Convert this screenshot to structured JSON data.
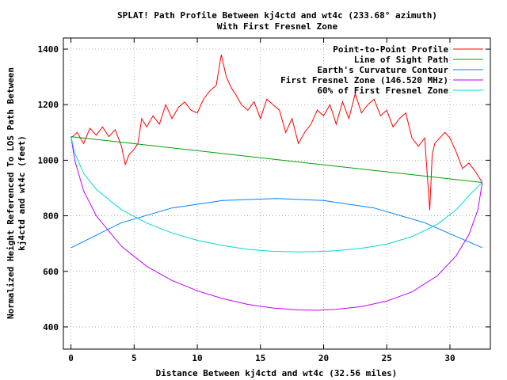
{
  "chart_data": {
    "type": "line",
    "title": "SPLAT! Path Profile Between kj4ctd and wt4c (233.68° azimuth)",
    "subtitle": "With First Fresnel Zone",
    "xlabel": "Distance Between kj4ctd and wt4c (32.56 miles)",
    "ylabel_line1": "Normalized Height Referenced To LOS Path Between",
    "ylabel_line2": "kj4ctd and wt4c (feet)",
    "xlim": [
      -0.6,
      33.2
    ],
    "ylim": [
      320,
      1440
    ],
    "xticks": [
      0,
      5,
      10,
      15,
      20,
      25,
      30
    ],
    "yticks": [
      400,
      600,
      800,
      1000,
      1200,
      1400
    ],
    "grid": true,
    "legend_position": "top-right",
    "series": [
      {
        "name": "Point-to-Point Profile",
        "color": "#ff0000",
        "x": [
          0,
          0.5,
          1,
          1.5,
          2,
          2.5,
          3,
          3.5,
          4,
          4.3,
          4.6,
          5,
          5.3,
          5.6,
          6,
          6.5,
          7,
          7.5,
          8,
          8.5,
          9,
          9.5,
          10,
          10.5,
          11,
          11.5,
          11.9,
          12.3,
          12.7,
          13,
          13.5,
          14,
          14.5,
          15,
          15.5,
          16,
          16.5,
          17,
          17.5,
          18,
          18.5,
          19,
          19.5,
          20,
          20.5,
          21,
          21.5,
          22,
          22.5,
          23,
          23.5,
          24,
          24.5,
          25,
          25.5,
          26,
          26.5,
          27,
          27.5,
          28,
          28.2,
          28.4,
          28.6,
          28.8,
          29.2,
          29.6,
          30,
          30.5,
          31,
          31.5,
          32,
          32.56
        ],
        "y": [
          1080,
          1100,
          1060,
          1115,
          1090,
          1120,
          1085,
          1110,
          1050,
          985,
          1020,
          1040,
          1060,
          1150,
          1120,
          1160,
          1130,
          1200,
          1150,
          1190,
          1210,
          1180,
          1170,
          1220,
          1250,
          1270,
          1380,
          1300,
          1260,
          1240,
          1200,
          1180,
          1210,
          1150,
          1220,
          1200,
          1180,
          1100,
          1150,
          1060,
          1100,
          1130,
          1180,
          1160,
          1200,
          1130,
          1210,
          1150,
          1240,
          1170,
          1200,
          1220,
          1160,
          1180,
          1120,
          1150,
          1170,
          1080,
          1050,
          1080,
          950,
          820,
          1020,
          1060,
          1080,
          1100,
          1080,
          1030,
          970,
          990,
          960,
          920
        ]
      },
      {
        "name": "Line of Sight Path",
        "color": "#00a000",
        "x": [
          0,
          32.56
        ],
        "y": [
          1085,
          920
        ]
      },
      {
        "name": "Earth's Curvature Contour",
        "color": "#0080ff",
        "x": [
          0,
          4,
          8,
          12,
          16.28,
          20,
          24,
          28,
          32.56
        ],
        "y": [
          685,
          775,
          828,
          855,
          862,
          855,
          828,
          775,
          685
        ]
      },
      {
        "name": "First Fresnel Zone (146.520 MHz)",
        "color": "#c000ff",
        "x": [
          0,
          0.3,
          1,
          2,
          4,
          6,
          8,
          10,
          12,
          14,
          16,
          18,
          19.5,
          21,
          23,
          25,
          27,
          29,
          30.5,
          31.5,
          32.2,
          32.56
        ],
        "y": [
          1085,
          1000,
          890,
          800,
          690,
          618,
          567,
          530,
          502,
          481,
          468,
          461,
          460,
          463,
          473,
          493,
          526,
          584,
          656,
          732,
          820,
          920
        ]
      },
      {
        "name": "60% of First Fresnel Zone",
        "color": "#00d8d8",
        "x": [
          0,
          0.3,
          1,
          2,
          4,
          6,
          8,
          10,
          12,
          14,
          16,
          18,
          19.5,
          21,
          23,
          25,
          27,
          29,
          30.5,
          31.5,
          32.2,
          32.56
        ],
        "y": [
          1085,
          1025,
          953,
          895,
          822,
          774,
          738,
          712,
          693,
          679,
          672,
          670,
          671,
          674,
          683,
          698,
          725,
          769,
          822,
          872,
          905,
          920
        ]
      }
    ]
  }
}
